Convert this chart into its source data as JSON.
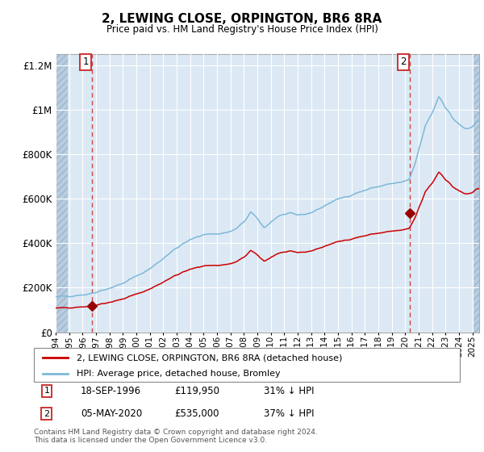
{
  "title": "2, LEWING CLOSE, ORPINGTON, BR6 8RA",
  "subtitle": "Price paid vs. HM Land Registry's House Price Index (HPI)",
  "background_color": "#ffffff",
  "plot_bg_color": "#dce9f5",
  "hatch_color": "#b8cde0",
  "blue_line_color": "#7db8d8",
  "red_line_color": "#cc0000",
  "marker_color": "#990000",
  "dashed_color": "#cc4444",
  "transaction1": {
    "date_label": "18-SEP-1996",
    "price": 119950,
    "year": 1996.72,
    "label": "31% ↓ HPI"
  },
  "transaction2": {
    "date_label": "05-MAY-2020",
    "price": 535000,
    "year": 2020.35,
    "label": "37% ↓ HPI"
  },
  "ylim": [
    0,
    1250000
  ],
  "xlim_start": 1994.0,
  "xlim_end": 2025.5,
  "footer": "Contains HM Land Registry data © Crown copyright and database right 2024.\nThis data is licensed under the Open Government Licence v3.0.",
  "legend_line1": "2, LEWING CLOSE, ORPINGTON, BR6 8RA (detached house)",
  "legend_line2": "HPI: Average price, detached house, Bromley",
  "yticks": [
    0,
    200000,
    400000,
    600000,
    800000,
    1000000,
    1200000
  ],
  "ytick_labels": [
    "£0",
    "£200K",
    "£400K",
    "£600K",
    "£800K",
    "£1M",
    "£1.2M"
  ]
}
